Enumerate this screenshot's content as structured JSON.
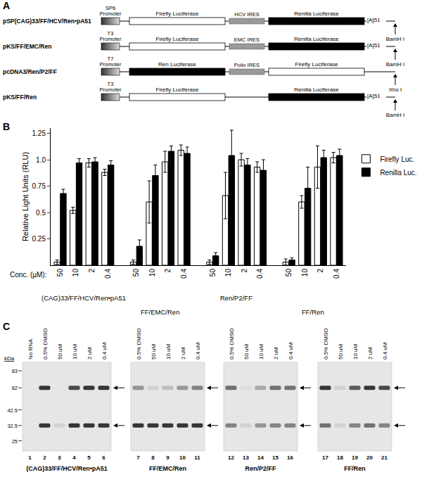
{
  "panel_a": {
    "panel": "A",
    "constructs": [
      {
        "name": "pSP(CAG)33/FF/HCV/Ren•pA51",
        "elements": [
          {
            "kind": "promoter",
            "label": "SP6 Promoter"
          },
          {
            "kind": "gene",
            "label": "Firefly Luciferase",
            "color": "#ffffff"
          },
          {
            "kind": "ires",
            "label": "HCV IRES"
          },
          {
            "kind": "gene",
            "label": "Renilla Luciferase",
            "color": "#000000"
          }
        ],
        "polyA": "[A]51",
        "site": "BamH I"
      },
      {
        "name": "pKS/FF/EMC/Ren",
        "elements": [
          {
            "kind": "promoter",
            "label": "T3 Promoter"
          },
          {
            "kind": "gene",
            "label": "Firefly Luciferase",
            "color": "#ffffff"
          },
          {
            "kind": "ires",
            "label": "EMC IRES"
          },
          {
            "kind": "gene",
            "label": "Renilla Luciferase",
            "color": "#000000"
          }
        ],
        "polyA": "[A]51",
        "site": "BamH I"
      },
      {
        "name": "pcDNA3/Ren/P2/FF",
        "elements": [
          {
            "kind": "promoter",
            "label": "T7 Promoter"
          },
          {
            "kind": "gene",
            "label": "Ren Luciferase",
            "color": "#000000"
          },
          {
            "kind": "ires",
            "label": "Polio IRES"
          },
          {
            "kind": "gene",
            "label": "Firefly Luciferase",
            "color": "#ffffff"
          }
        ],
        "polyA": null,
        "site": "Xho I"
      },
      {
        "name": "pKS/FF/Ren",
        "elements": [
          {
            "kind": "promoter",
            "label": "T3 Promoter"
          },
          {
            "kind": "gene",
            "label": "Firefly Luciferase",
            "color": "#ffffff"
          },
          {
            "kind": "gene",
            "label": "Renilla Luciferase",
            "color": "#000000"
          }
        ],
        "polyA": "[A]51",
        "site": "BamH I"
      }
    ]
  },
  "chart_data": {
    "panel": "B",
    "type": "bar",
    "categories": [
      "50",
      "10",
      "2",
      "0.4",
      "50",
      "10",
      "2",
      "0.4",
      "50",
      "10",
      "2",
      "0.4",
      "50",
      "10",
      "2",
      "0.4"
    ],
    "groups": [
      "(CAG)33/FF/HCV/Ren•pA51",
      "FF/EMC/Ren",
      "Ren/P2/FF",
      "FF/Ren"
    ],
    "x_label": "Conc. (µM):",
    "y_label": "Relative Light Units (RLU)",
    "ylim": [
      0,
      1.3
    ],
    "yticks": [
      0.25,
      0.5,
      0.75,
      {
        "value": 1,
        "label": "1.0"
      },
      1.25
    ],
    "grid": false,
    "legend": "right",
    "series": [
      {
        "name": "Firefly Luc.",
        "color": "#ffffff",
        "values": [
          0.03,
          0.52,
          0.97,
          0.88,
          0.03,
          0.6,
          0.98,
          1.09,
          0.03,
          0.66,
          1.0,
          0.93,
          0.03,
          0.6,
          0.93,
          1.02
        ],
        "errors": [
          0.02,
          0.03,
          0.04,
          0.03,
          0.02,
          0.2,
          0.1,
          0.05,
          0.02,
          0.22,
          0.06,
          0.05,
          0.03,
          0.06,
          0.2,
          0.05
        ]
      },
      {
        "name": "Renilla Luc.",
        "color": "#000000",
        "values": [
          0.68,
          0.97,
          0.98,
          0.95,
          0.18,
          0.85,
          1.08,
          1.06,
          0.09,
          1.04,
          0.95,
          0.9,
          0.05,
          0.73,
          1.02,
          1.04
        ],
        "errors": [
          0.04,
          0.04,
          0.04,
          0.04,
          0.06,
          0.1,
          0.05,
          0.06,
          0.03,
          0.24,
          0.06,
          0.1,
          0.02,
          0.2,
          0.07,
          0.06
        ]
      }
    ]
  },
  "panel_c": {
    "panel": "C",
    "kda_label": "kDa",
    "markers": [
      83,
      62,
      42.5,
      32.5,
      25
    ],
    "gels": [
      {
        "title": "(CAG)33/FF/HCV/Ren•pA51",
        "lanes": [
          {
            "number": 1,
            "label": "No RNA",
            "bands": [
              0,
              0
            ]
          },
          {
            "number": 2,
            "label": "0.5% DMSO",
            "bands": [
              0.9,
              0.9
            ]
          },
          {
            "number": 3,
            "label": "50 uM",
            "bands": [
              0,
              0.1
            ]
          },
          {
            "number": 4,
            "label": "10 uM",
            "bands": [
              0.8,
              0.9
            ]
          },
          {
            "number": 5,
            "label": "2 uM",
            "bands": [
              0.9,
              0.9
            ]
          },
          {
            "number": 6,
            "label": "0.4 uM",
            "bands": [
              0.9,
              0.9
            ]
          }
        ]
      },
      {
        "title": "FF/EMC/Ren",
        "lanes": [
          {
            "number": 7,
            "label": "0.5% DMSO",
            "bands": [
              0.4,
              0.9
            ]
          },
          {
            "number": 8,
            "label": "50 uM",
            "bands": [
              0.1,
              0.9
            ]
          },
          {
            "number": 9,
            "label": "10 uM",
            "bands": [
              0.2,
              0.9
            ]
          },
          {
            "number": 10,
            "label": "2 uM",
            "bands": [
              0.4,
              0.9
            ]
          },
          {
            "number": 11,
            "label": "0.4 uM",
            "bands": [
              0.5,
              0.9
            ]
          }
        ]
      },
      {
        "title": "Ren/P2/FF",
        "lanes": [
          {
            "number": 12,
            "label": "0.5% DMSO",
            "bands": [
              0.6,
              0.5
            ]
          },
          {
            "number": 13,
            "label": "50 uM",
            "bands": [
              0.05,
              0.1
            ]
          },
          {
            "number": 14,
            "label": "10 uM",
            "bands": [
              0.3,
              0.4
            ]
          },
          {
            "number": 15,
            "label": "2 uM",
            "bands": [
              0.6,
              0.5
            ]
          },
          {
            "number": 16,
            "label": "0.4 uM",
            "bands": [
              0.6,
              0.5
            ]
          }
        ]
      },
      {
        "title": "FF/Ren",
        "lanes": [
          {
            "number": 17,
            "label": "0.5% DMSO",
            "bands": [
              0.9,
              0.6
            ]
          },
          {
            "number": 18,
            "label": "50 uM",
            "bands": [
              0.1,
              0.1
            ]
          },
          {
            "number": 19,
            "label": "10 uM",
            "bands": [
              0.7,
              0.5
            ]
          },
          {
            "number": 20,
            "label": "2 uM",
            "bands": [
              0.9,
              0.6
            ]
          },
          {
            "number": 21,
            "label": "0.4 uM",
            "bands": [
              0.8,
              0.5
            ]
          }
        ]
      }
    ]
  }
}
